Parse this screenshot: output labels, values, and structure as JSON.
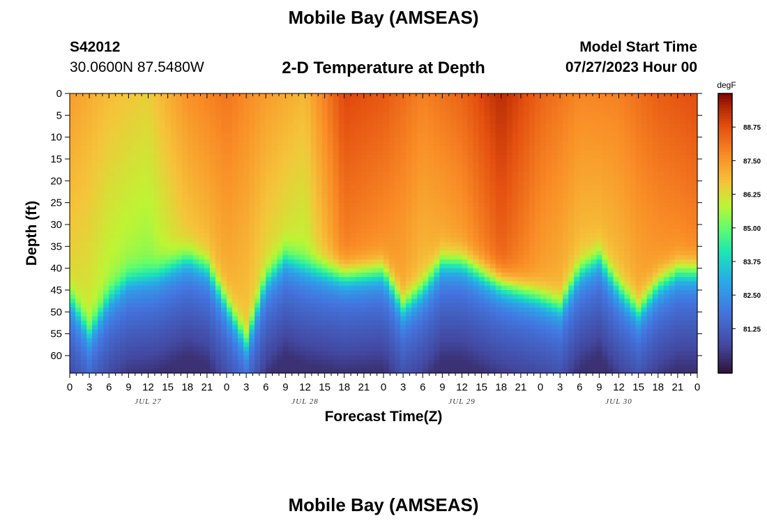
{
  "header": {
    "title": "Mobile Bay (AMSEAS)",
    "station_id": "S42012",
    "station_location": "30.0600N  87.5480W",
    "subtitle": "2-D Temperature at Depth",
    "model_start_label": "Model Start Time",
    "model_start_value": "07/27/2023 Hour 00"
  },
  "footer": {
    "title": "Mobile Bay (AMSEAS)"
  },
  "chart_data": {
    "type": "heatmap",
    "title": "2-D Temperature at Depth",
    "xlabel": "Forecast Time(Z)",
    "ylabel": "Depth (ft)",
    "x_range_hours": [
      0,
      96
    ],
    "y_range_ft": [
      0,
      64
    ],
    "y_inverted": true,
    "x_tick_labels": [
      "0",
      "3",
      "6",
      "9",
      "12",
      "15",
      "18",
      "21",
      "0",
      "3",
      "6",
      "9",
      "12",
      "15",
      "18",
      "21",
      "0",
      "3",
      "6",
      "9",
      "12",
      "15",
      "18",
      "21",
      "0",
      "3",
      "6",
      "9",
      "12",
      "15",
      "18",
      "21",
      "0"
    ],
    "x_day_labels": [
      "JUL 27",
      "JUL 28",
      "JUL 29",
      "JUL 30"
    ],
    "y_ticks": [
      0,
      5,
      10,
      15,
      20,
      25,
      30,
      35,
      40,
      45,
      50,
      55,
      60
    ],
    "colorbar": {
      "unit": "degF",
      "range": [
        79.6,
        90.0
      ],
      "ticks": [
        "88.75",
        "87.50",
        "86.25",
        "85.00",
        "83.75",
        "82.50",
        "81.25"
      ]
    },
    "thermocline_depth_ft": {
      "hours": [
        0,
        3,
        6,
        9,
        13,
        18,
        21,
        27,
        30,
        33,
        36,
        42,
        48,
        51,
        54,
        57,
        60,
        66,
        72,
        75,
        78,
        81,
        84,
        87,
        90,
        93,
        96
      ],
      "depth": [
        47,
        55,
        47,
        43,
        42,
        38,
        40,
        57,
        43,
        38,
        40,
        42,
        41,
        49,
        45,
        39,
        39,
        44,
        47,
        49,
        41,
        38,
        45,
        50,
        44,
        41,
        41
      ]
    },
    "surface_temperature_degF": {
      "hours": [
        0,
        6,
        12,
        18,
        24,
        30,
        36,
        42,
        48,
        54,
        60,
        66,
        72,
        78,
        84,
        90,
        96
      ],
      "values": [
        87.4,
        86.8,
        86.5,
        87.6,
        88.1,
        87.4,
        86.9,
        88.9,
        88.6,
        87.9,
        88.4,
        89.4,
        88.4,
        87.8,
        87.9,
        88.5,
        88.8
      ]
    },
    "bottom_temperature_degF": 80.2
  }
}
